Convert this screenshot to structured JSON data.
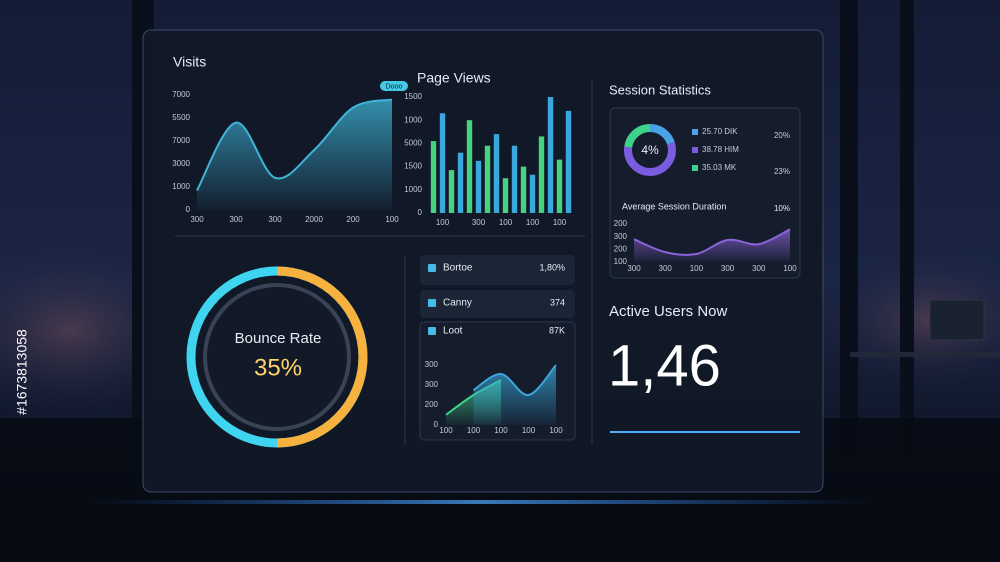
{
  "watermark_id": "#1673813058",
  "chart_data": [
    {
      "type": "area",
      "title": "Visits",
      "badge": "Dooo",
      "y_labels": [
        "7000",
        "5500",
        "7000",
        "3000",
        "1000",
        "0"
      ],
      "categories": [
        "300",
        "300",
        "300",
        "2000",
        "200",
        "100"
      ],
      "values": [
        17,
        76,
        28,
        52,
        89,
        96
      ],
      "color": "#3fb6d8",
      "ylim": [
        0,
        100
      ]
    },
    {
      "type": "bar",
      "title": "Page Views",
      "y_labels": [
        "1500",
        "1000",
        "5000",
        "1500",
        "1000",
        "0"
      ],
      "categories": [
        null,
        "100",
        null,
        null,
        null,
        "300",
        null,
        null,
        "100",
        null,
        null,
        "100",
        null,
        null,
        "100",
        null
      ],
      "values": [
        62,
        86,
        37,
        52,
        80,
        45,
        58,
        68,
        30,
        58,
        40,
        33,
        66,
        100,
        46,
        88
      ],
      "colors": [
        "#46d37f",
        "#3aa8dc"
      ],
      "ylim": [
        0,
        100
      ]
    },
    {
      "type": "pie",
      "title": "Session Statistics",
      "center_label": "4%",
      "categories": [
        "25.70 DIK",
        "38.78 HIM",
        "35.03 MK"
      ],
      "values": [
        20,
        57,
        23
      ],
      "value_labels": [
        "20%",
        null,
        "23%"
      ],
      "colors": [
        "#4aa3e6",
        "#7a5ce0",
        "#3fd28a"
      ]
    },
    {
      "type": "area",
      "title": "Average Session Duration",
      "annotation": "10%",
      "y_labels": [
        "200",
        "300",
        "200",
        "100"
      ],
      "categories": [
        "300",
        "300",
        "100",
        "300",
        "300",
        "100"
      ],
      "values": [
        60,
        26,
        21,
        58,
        47,
        86
      ],
      "color": "#8a63d8",
      "ylim": [
        0,
        100
      ]
    },
    {
      "type": "area",
      "y_labels": [
        "300",
        "300",
        "200",
        "0"
      ],
      "categories": [
        "100",
        "100",
        "100",
        "100",
        "100"
      ],
      "series": [
        {
          "color": "#3fd28a",
          "values": [
            17,
            50,
            75,
            null,
            null
          ]
        },
        {
          "color": "#3aa8dc",
          "values": [
            null,
            58,
            85,
            50,
            100
          ]
        }
      ],
      "ylim": [
        0,
        100
      ]
    }
  ],
  "bounce": {
    "label": "Bounce Rate",
    "value": "35%"
  },
  "list": {
    "rows": [
      [
        "Bortoe",
        "1,80%"
      ],
      [
        "Canny",
        "374"
      ],
      [
        "Loot",
        "87K"
      ]
    ]
  },
  "active_users": {
    "label": "Active Users Now",
    "value": "1,46"
  }
}
